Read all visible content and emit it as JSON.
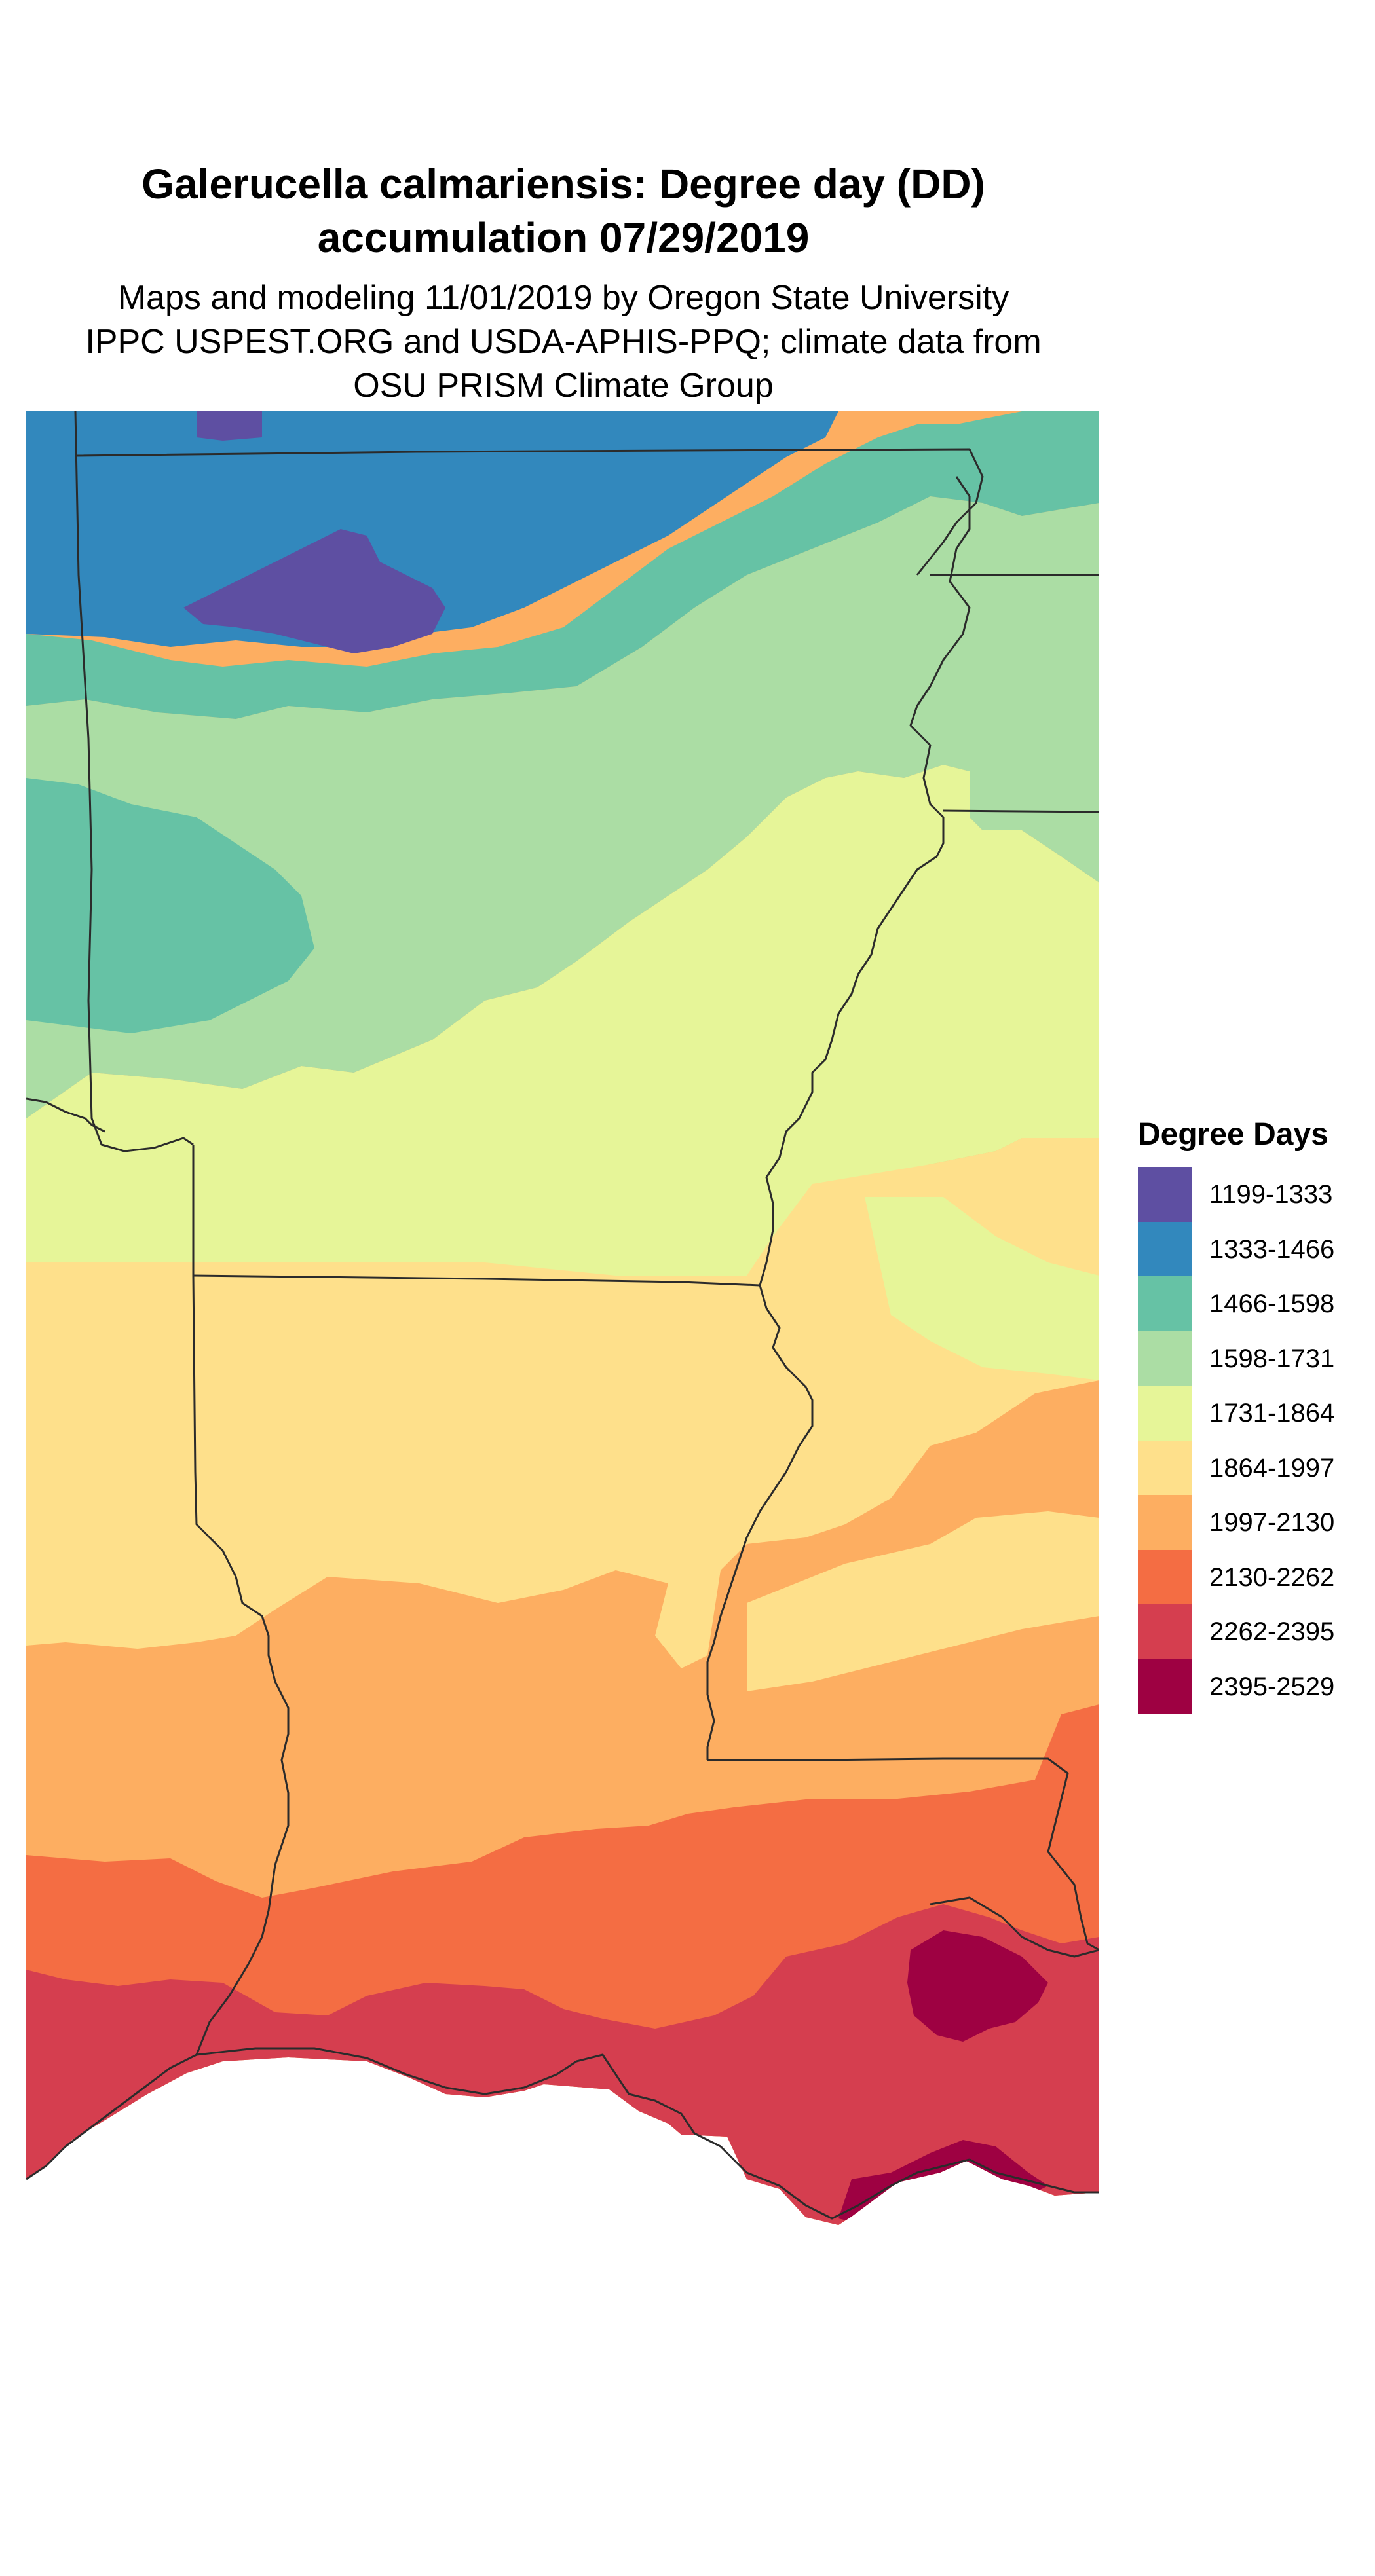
{
  "title": {
    "line1": "Galerucella calmariensis: Degree day (DD)",
    "line2": "accumulation 07/29/2019"
  },
  "subtitle": {
    "line1": "Maps and modeling 11/01/2019 by Oregon State University",
    "line2": "IPPC USPEST.ORG and USDA-APHIS-PPQ; climate data from",
    "line3": "OSU PRISM Climate Group"
  },
  "legend": {
    "title": "Degree Days",
    "items": [
      {
        "label": "1199-1333",
        "color": "#5e4fa2"
      },
      {
        "label": "1333-1466",
        "color": "#3288bd"
      },
      {
        "label": "1466-1598",
        "color": "#66c2a5"
      },
      {
        "label": "1598-1731",
        "color": "#abdda4"
      },
      {
        "label": "1731-1864",
        "color": "#e6f598"
      },
      {
        "label": "1864-1997",
        "color": "#fee08b"
      },
      {
        "label": "1997-2130",
        "color": "#fdae61"
      },
      {
        "label": "2130-2262",
        "color": "#f46d43"
      },
      {
        "label": "2262-2395",
        "color": "#d53e4f"
      },
      {
        "label": "2395-2529",
        "color": "#9e0142"
      }
    ]
  },
  "boundary_color": "#2b2b2b"
}
